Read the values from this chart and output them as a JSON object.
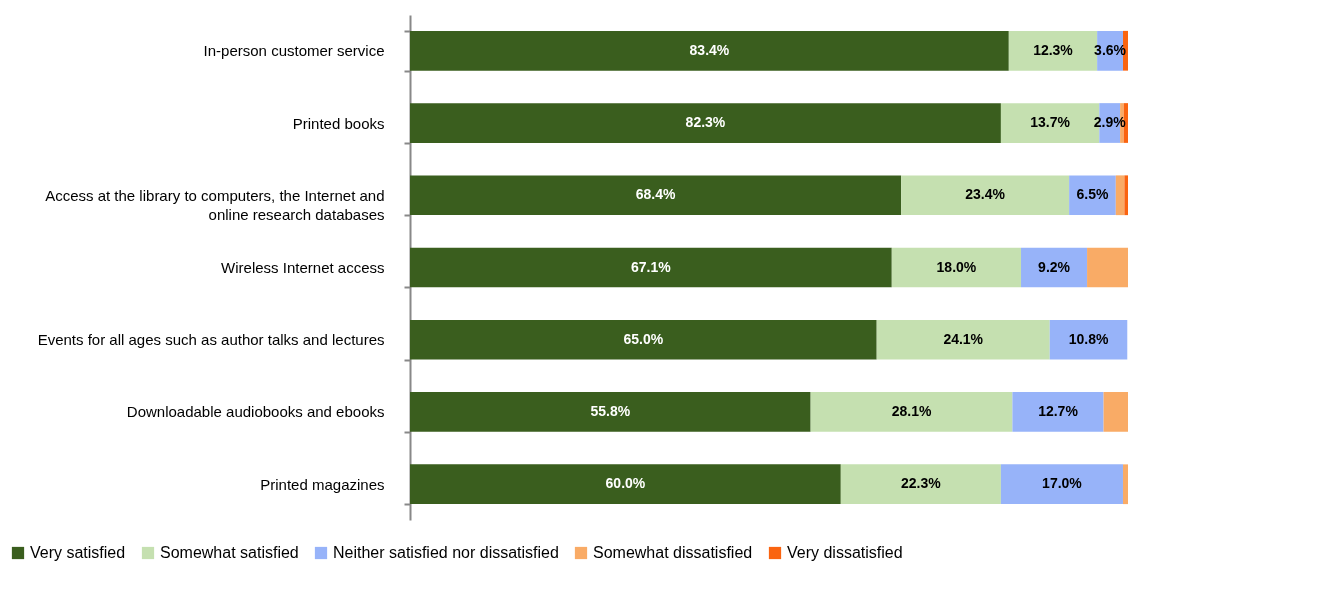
{
  "chart_data": {
    "type": "bar",
    "orientation": "horizontal",
    "stacked": true,
    "legend": "bottom",
    "xlim": [
      0,
      100
    ],
    "categories": [
      "In-person customer service",
      "Printed books",
      "Access at the library to computers, the Internet and online research databases",
      "Wireless Internet access",
      "Events for all ages such as author talks and lectures",
      "Downloadable audiobooks and ebooks",
      "Printed magazines"
    ],
    "series": [
      {
        "name": "Very satisfied",
        "color": "#3a5e1e",
        "values": [
          83.4,
          82.3,
          68.4,
          67.1,
          65.0,
          55.8,
          60.0
        ],
        "value_labels": [
          "83.4%",
          "82.3%",
          "68.4%",
          "67.1%",
          "65.0%",
          "55.8%",
          "60.0%"
        ]
      },
      {
        "name": "Somewhat satisfied",
        "color": "#c5e0b0",
        "values": [
          12.3,
          13.7,
          23.4,
          18.0,
          24.1,
          28.1,
          22.3
        ],
        "value_labels": [
          "12.3%",
          "13.7%",
          "23.4%",
          "18.0%",
          "24.1%",
          "28.1%",
          "22.3%"
        ]
      },
      {
        "name": "Neither satisfied nor dissatisfied",
        "color": "#97b3f9",
        "values": [
          3.6,
          2.9,
          6.5,
          9.2,
          10.8,
          12.7,
          17.0
        ],
        "value_labels": [
          "3.6%",
          "2.9%",
          "6.5%",
          "9.2%",
          "10.8%",
          "12.7%",
          "17.0%"
        ]
      },
      {
        "name": "Somewhat dissatisfied",
        "color": "#f9ab66",
        "values": [
          null,
          0.5,
          1.2,
          5.7,
          null,
          3.4,
          0.7
        ],
        "value_labels": [
          null,
          null,
          null,
          null,
          null,
          null,
          null
        ]
      },
      {
        "name": "Very dissatisfied",
        "color": "#fa6410",
        "values": [
          0.7,
          0.6,
          0.5,
          null,
          null,
          null,
          null
        ],
        "value_labels": [
          null,
          null,
          null,
          null,
          null,
          null,
          null
        ]
      }
    ]
  }
}
